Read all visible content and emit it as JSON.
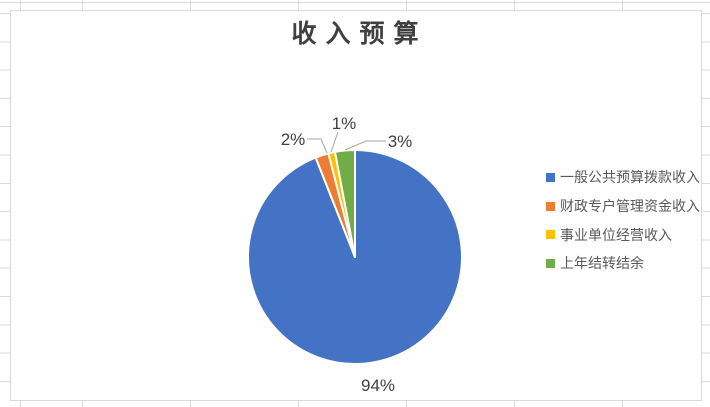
{
  "chart_data": {
    "type": "pie",
    "title": "收入预算",
    "categories": [
      "一般公共预算拨款收入",
      "财政专户管理资金收入",
      "事业单位经营收入",
      "上年结转结余"
    ],
    "values": [
      94,
      2,
      1,
      3
    ],
    "unit": "%",
    "colors": [
      "#4472C4",
      "#ED7D31",
      "#FFC000",
      "#70AD47"
    ],
    "data_labels": [
      "94%",
      "2%",
      "1%",
      "3%"
    ],
    "start_angle": "top",
    "direction": "clockwise",
    "legend_position": "right",
    "label_text_color": "#404040",
    "leader_line_color": "#A6A6A6",
    "chart_border_color": "#D9D9D9"
  }
}
